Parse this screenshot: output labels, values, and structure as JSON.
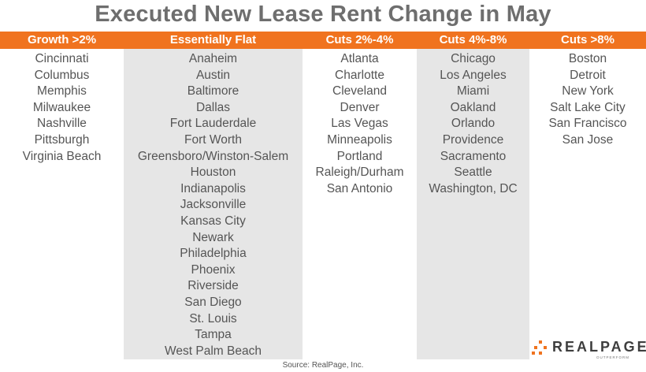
{
  "title": "Executed New Lease Rent Change in May",
  "source": "Source: RealPage, Inc.",
  "logo": {
    "name": "REALPAGE",
    "tagline": "OUTPERFORM",
    "icon": "realpage-dots-icon"
  },
  "colors": {
    "header_bg": "#f0731f",
    "shade": "#e6e6e6",
    "text": "#555555",
    "title": "#6e6e6e"
  },
  "columns": [
    {
      "header": "Growth >2%",
      "cities": [
        "Cincinnati",
        "Columbus",
        "Memphis",
        "Milwaukee",
        "Nashville",
        "Pittsburgh",
        "Virginia Beach"
      ]
    },
    {
      "header": "Essentially Flat",
      "cities": [
        "Anaheim",
        "Austin",
        "Baltimore",
        "Dallas",
        "Fort Lauderdale",
        "Fort Worth",
        "Greensboro/Winston-Salem",
        "Houston",
        "Indianapolis",
        "Jacksonville",
        "Kansas City",
        "Newark",
        "Philadelphia",
        "Phoenix",
        "Riverside",
        "San Diego",
        "St. Louis",
        "Tampa",
        "West Palm Beach"
      ]
    },
    {
      "header": "Cuts 2%-4%",
      "cities": [
        "Atlanta",
        "Charlotte",
        "Cleveland",
        "Denver",
        "Las Vegas",
        "Minneapolis",
        "Portland",
        "Raleigh/Durham",
        "San Antonio"
      ]
    },
    {
      "header": "Cuts 4%-8%",
      "cities": [
        "Chicago",
        "Los Angeles",
        "Miami",
        "Oakland",
        "Orlando",
        "Providence",
        "Sacramento",
        "Seattle",
        "Washington, DC"
      ]
    },
    {
      "header": "Cuts >8%",
      "cities": [
        "Boston",
        "Detroit",
        "New York",
        "Salt Lake City",
        "San Francisco",
        "San Jose"
      ]
    }
  ]
}
